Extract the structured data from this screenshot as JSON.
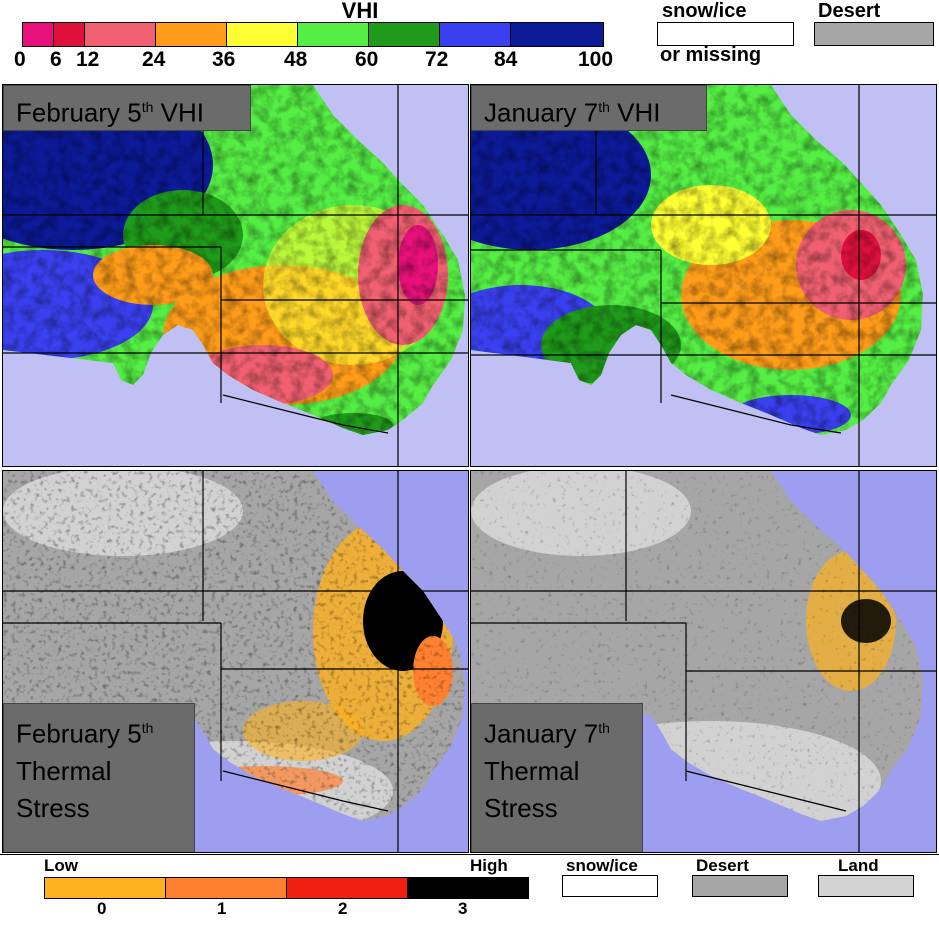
{
  "vhi_legend": {
    "title": "VHI",
    "ticks": [
      "0",
      "6",
      "12",
      "24",
      "36",
      "48",
      "60",
      "72",
      "84",
      "100"
    ],
    "colors": [
      "#e8107a",
      "#e0103c",
      "#f06070",
      "#ff9d1a",
      "#ffff33",
      "#55ee44",
      "#1f9a1a",
      "#3a40f0",
      "#0c1a98"
    ],
    "snow_label_1": "snow/ice",
    "snow_label_2": "or missing",
    "desert_label": "Desert"
  },
  "panels": {
    "vhi_feb": {
      "label_main": "February 5",
      "label_sup": "th",
      "label_rest": " VHI"
    },
    "vhi_jan": {
      "label_main": "January 7",
      "label_sup": "th",
      "label_rest": "  VHI"
    },
    "ts_feb": {
      "label_main": "February 5",
      "label_sup": "th",
      "label_l2": "Thermal",
      "label_l3": "Stress"
    },
    "ts_jan": {
      "label_main": "January 7",
      "label_sup": "th",
      "label_l2": "Thermal",
      "label_l3": "Stress"
    }
  },
  "thermal_legend": {
    "low": "Low",
    "high": "High",
    "ticks": [
      "0",
      "1",
      "2",
      "3"
    ],
    "colors": [
      "#ffb21e",
      "#ff8030",
      "#f02010",
      "#000000"
    ],
    "snow_label": "snow/ice",
    "desert_label": "Desert",
    "land_label": "Land"
  },
  "colors": {
    "water": "#c0c0f4",
    "water_ts": "#9e9ef0",
    "desert": "#a6a6a6",
    "land": "#d2d2d2"
  }
}
